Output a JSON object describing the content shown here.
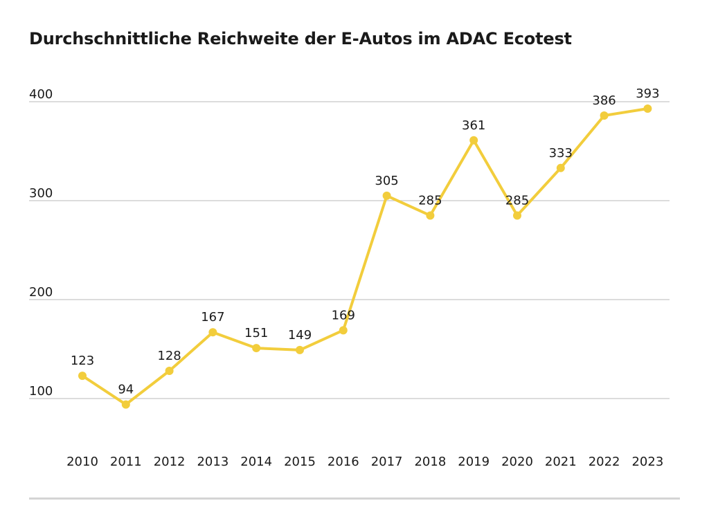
{
  "chart_data": {
    "type": "line",
    "title": "Durchschnittliche Reichweite der E-Autos im ADAC Ecotest",
    "xlabel": "",
    "ylabel": "",
    "categories": [
      "2010",
      "2011",
      "2012",
      "2013",
      "2014",
      "2015",
      "2016",
      "2017",
      "2018",
      "2019",
      "2020",
      "2021",
      "2022",
      "2023"
    ],
    "series": [
      {
        "name": "Reichweite",
        "values": [
          123,
          94,
          128,
          167,
          151,
          149,
          169,
          305,
          285,
          361,
          285,
          333,
          386,
          393
        ]
      }
    ],
    "yticks": [
      100,
      200,
      300,
      400
    ],
    "ylim": [
      100,
      400
    ],
    "grid": true,
    "legend": "none"
  },
  "colors": {
    "line": "#f2cd3c",
    "grid": "#c8c8c8",
    "footer_rule": "#d4d4d4",
    "text": "#1a1a1a"
  }
}
